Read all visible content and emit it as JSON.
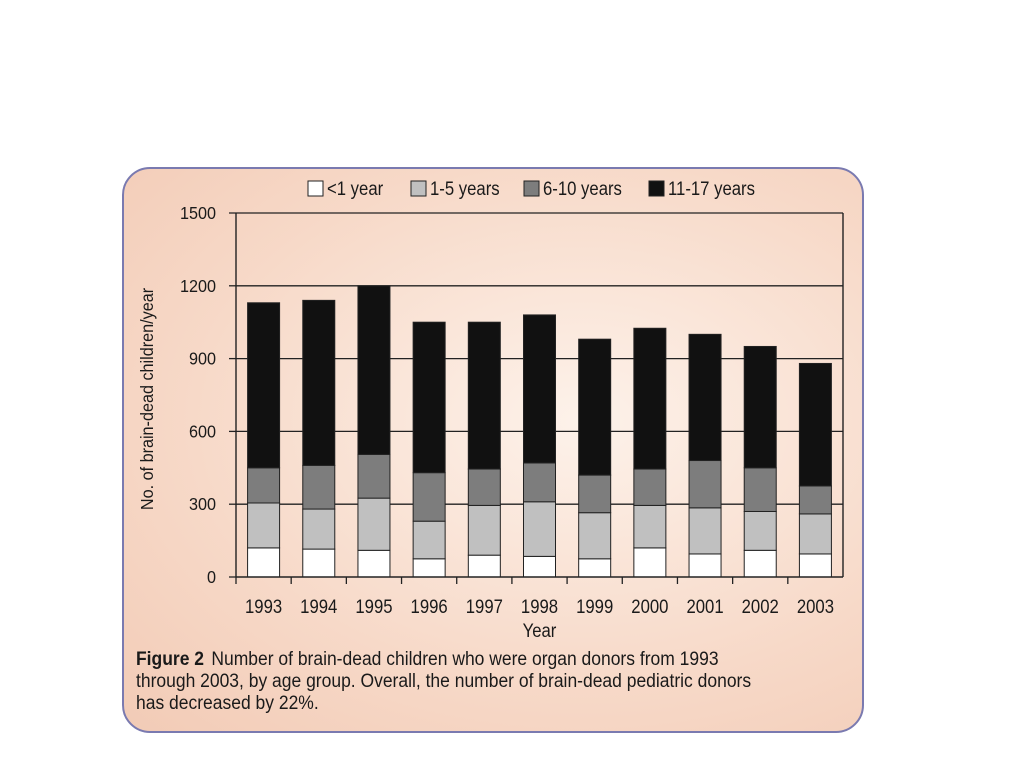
{
  "figure": {
    "caption_label": "Figure 2",
    "caption_text": "Number of brain-dead children who were organ donors from 1993 through 2003, by age group. Overall, the number of brain-dead pediatric donors has decreased by 22%."
  },
  "chart_data": {
    "type": "bar",
    "stacked": true,
    "title": "",
    "xlabel": "Year",
    "ylabel": "No. of brain-dead children/year",
    "ylim": [
      0,
      1500
    ],
    "yticks": [
      0,
      300,
      600,
      900,
      1200,
      1500
    ],
    "grid": true,
    "legend_position": "top",
    "categories": [
      "1993",
      "1994",
      "1995",
      "1996",
      "1997",
      "1998",
      "1999",
      "2000",
      "2001",
      "2002",
      "2003"
    ],
    "series": [
      {
        "name": "<1 year",
        "color": "#ffffff",
        "values": [
          120,
          115,
          110,
          75,
          90,
          85,
          75,
          120,
          95,
          110,
          95
        ]
      },
      {
        "name": "1-5 years",
        "color": "#c0c0c0",
        "values": [
          185,
          165,
          215,
          155,
          205,
          225,
          190,
          175,
          190,
          160,
          165
        ]
      },
      {
        "name": "6-10 years",
        "color": "#7d7d7d",
        "values": [
          145,
          180,
          180,
          200,
          150,
          160,
          155,
          150,
          195,
          180,
          115
        ]
      },
      {
        "name": "11-17 years",
        "color": "#111111",
        "values": [
          680,
          680,
          695,
          620,
          605,
          610,
          560,
          580,
          520,
          500,
          505
        ]
      }
    ]
  }
}
